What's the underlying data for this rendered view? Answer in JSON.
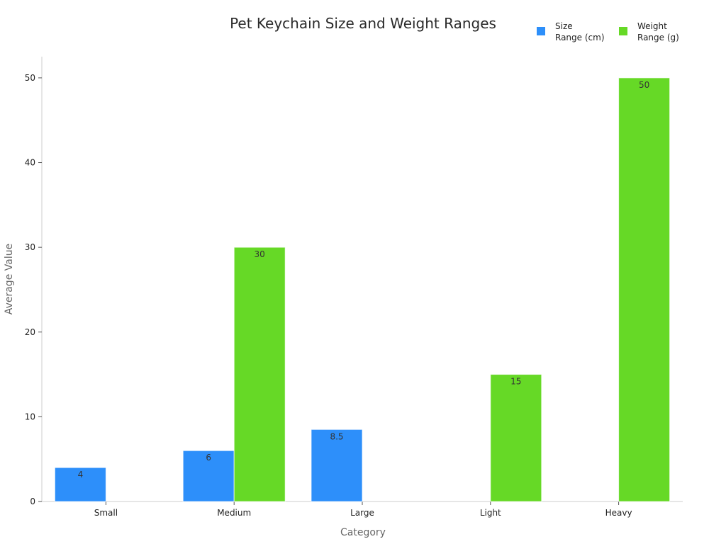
{
  "chart_data": {
    "type": "bar",
    "title": "Pet Keychain Size and Weight Ranges",
    "xlabel": "Category",
    "ylabel": "Average Value",
    "categories": [
      "Small",
      "Medium",
      "Large",
      "Light",
      "Heavy"
    ],
    "series": [
      {
        "name": "Size Range (cm)",
        "legend_lines": [
          "Size",
          "Range (cm)"
        ],
        "color": "#2d8ffa",
        "values": [
          4,
          6,
          8.5,
          null,
          null
        ]
      },
      {
        "name": "Weight Range (g)",
        "legend_lines": [
          "Weight",
          "Range (g)"
        ],
        "color": "#66d926",
        "values": [
          null,
          30,
          null,
          15,
          50
        ]
      }
    ],
    "ylim": [
      0,
      52.5
    ],
    "yticks": [
      0,
      10,
      20,
      30,
      40,
      50
    ],
    "grid": false,
    "legend_position": "top-right"
  }
}
